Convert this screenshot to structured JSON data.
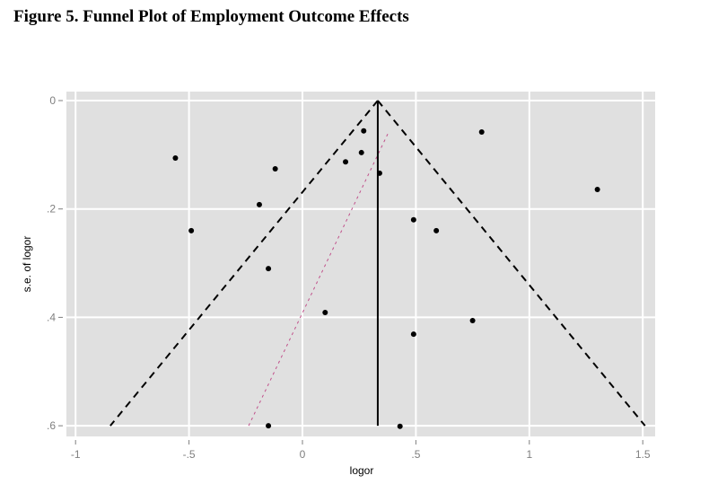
{
  "figure": {
    "title": "Figure 5. Funnel Plot of Employment Outcome Effects"
  },
  "chart_data": {
    "type": "scatter",
    "title": "Figure 5. Funnel Plot of Employment Outcome Effects",
    "xlabel": "logor",
    "ylabel": "s.e. of logor",
    "xlim": [
      -1.04,
      1.55
    ],
    "ylim": [
      0.62,
      -0.017
    ],
    "y_reversed": true,
    "x_ticks": [
      -1,
      -0.5,
      0,
      0.5,
      1,
      1.5
    ],
    "x_tick_labels": [
      "-1",
      "-.5",
      "0",
      ".5",
      "1",
      "1.5"
    ],
    "y_ticks": [
      0,
      0.2,
      0.4,
      0.6
    ],
    "y_tick_labels": [
      "0",
      ".2",
      ".4",
      ".6"
    ],
    "grid": true,
    "background": "#e0e0e0",
    "legend": null,
    "points": [
      {
        "x": -0.56,
        "y": 0.106
      },
      {
        "x": -0.49,
        "y": 0.24
      },
      {
        "x": -0.12,
        "y": 0.126
      },
      {
        "x": -0.19,
        "y": 0.192
      },
      {
        "x": -0.15,
        "y": 0.31
      },
      {
        "x": -0.15,
        "y": 0.6
      },
      {
        "x": 0.19,
        "y": 0.113
      },
      {
        "x": 0.26,
        "y": 0.096
      },
      {
        "x": 0.27,
        "y": 0.056
      },
      {
        "x": 0.34,
        "y": 0.134
      },
      {
        "x": 0.1,
        "y": 0.391
      },
      {
        "x": 0.49,
        "y": 0.22
      },
      {
        "x": 0.59,
        "y": 0.24
      },
      {
        "x": 0.79,
        "y": 0.058
      },
      {
        "x": 0.75,
        "y": 0.406
      },
      {
        "x": 0.49,
        "y": 0.431
      },
      {
        "x": 0.43,
        "y": 0.601
      },
      {
        "x": 1.3,
        "y": 0.164
      }
    ],
    "pooled_effect": {
      "x": 0.332,
      "y_from": 0,
      "y_to": 0.6,
      "style": "solid",
      "color": "#000000"
    },
    "funnel_limits": {
      "apex": {
        "x": 0.332,
        "y": 0
      },
      "left_end": {
        "x": -0.847,
        "y": 0.6
      },
      "right_end": {
        "x": 1.51,
        "y": 0.6
      },
      "style": "dashed",
      "color": "#000000"
    },
    "egger_line": {
      "from": {
        "x": -0.237,
        "y": 0.6
      },
      "to": {
        "x": 0.38,
        "y": 0.058
      },
      "style": "dotted",
      "color": "#c0508a"
    }
  }
}
